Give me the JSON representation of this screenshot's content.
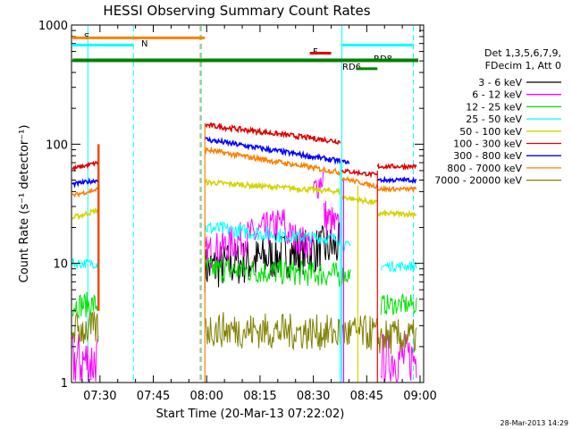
{
  "chart_data": {
    "type": "line",
    "title": "HESSI Observing Summary Count Rates",
    "xlabel": "Start Time (20-Mar-13 07:22:02)",
    "ylabel": "Count Rate (s⁻¹ detector⁻¹)",
    "ylog": true,
    "ylim": [
      1,
      1000
    ],
    "xlim_minutes": [
      0,
      99
    ],
    "x_tick_minutes": [
      8,
      23,
      38,
      53,
      68,
      83,
      98
    ],
    "x_ticks": [
      "07:30",
      "07:45",
      "08:00",
      "08:15",
      "08:30",
      "08:45",
      "09:00"
    ],
    "y_ticks": [
      "1",
      "10",
      "100",
      "1000"
    ],
    "y_tick_values": [
      1,
      10,
      100,
      1000
    ],
    "legend_header": [
      "Det 1,3,5,6,7,9,",
      "FDecim 1, Att 0"
    ],
    "legend_placement": "right",
    "series": [
      {
        "name": "3 - 6 keV",
        "color": "#000000"
      },
      {
        "name": "6 - 12 keV",
        "color": "#ff00ff"
      },
      {
        "name": "12 - 25 keV",
        "color": "#00e000"
      },
      {
        "name": "25 - 50 keV",
        "color": "#00ffff"
      },
      {
        "name": "50 - 100 keV",
        "color": "#d4d400"
      },
      {
        "name": "100 - 300 keV",
        "color": "#e00000"
      },
      {
        "name": "300 - 800 keV",
        "color": "#0000ff"
      },
      {
        "name": "800 - 7000 keV",
        "color": "#ff8000"
      },
      {
        "name": "7000 - 20000 keV",
        "color": "#808000"
      }
    ],
    "annotations": {
      "flags": [
        "S",
        "N",
        "F",
        "RD6",
        "RD8"
      ],
      "colors": {
        "S": "#ff8000",
        "N": "#00ffff",
        "F": "#e00000",
        "RD6": "#008000",
        "RD8": "#008000"
      }
    }
  },
  "footer": {
    "date_stamp": "28-Mar-2013 14:29"
  }
}
